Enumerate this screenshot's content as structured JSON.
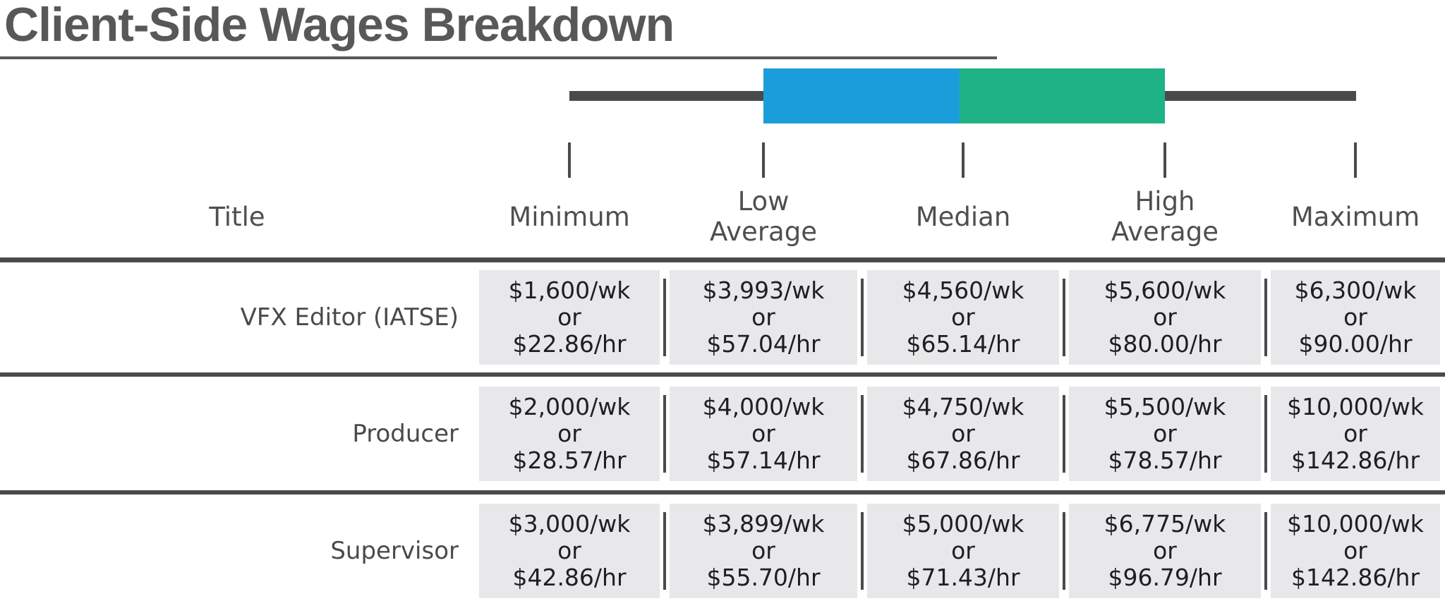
{
  "title": "Client-Side Wages Breakdown",
  "chart_data": {
    "type": "table",
    "title": "Client-Side Wages Breakdown",
    "columns": [
      "Title",
      "Minimum",
      "Low Average",
      "Median",
      "High Average",
      "Maximum"
    ],
    "column_display": [
      "Title",
      "Minimum",
      "Low\nAverage",
      "Median",
      "High\nAverage",
      "Maximum"
    ],
    "conjunction_label": "or",
    "rows": [
      {
        "label": "VFX Editor (IATSE)",
        "cells": [
          {
            "weekly": "$1,600/wk",
            "hourly": "$22.86/hr",
            "weekly_usd": 1600,
            "hourly_usd": 22.86
          },
          {
            "weekly": "$3,993/wk",
            "hourly": "$57.04/hr",
            "weekly_usd": 3993,
            "hourly_usd": 57.04
          },
          {
            "weekly": "$4,560/wk",
            "hourly": "$65.14/hr",
            "weekly_usd": 4560,
            "hourly_usd": 65.14
          },
          {
            "weekly": "$5,600/wk",
            "hourly": "$80.00/hr",
            "weekly_usd": 5600,
            "hourly_usd": 80.0
          },
          {
            "weekly": "$6,300/wk",
            "hourly": "$90.00/hr",
            "weekly_usd": 6300,
            "hourly_usd": 90.0
          }
        ]
      },
      {
        "label": "Producer",
        "cells": [
          {
            "weekly": "$2,000/wk",
            "hourly": "$28.57/hr",
            "weekly_usd": 2000,
            "hourly_usd": 28.57
          },
          {
            "weekly": "$4,000/wk",
            "hourly": "$57.14/hr",
            "weekly_usd": 4000,
            "hourly_usd": 57.14
          },
          {
            "weekly": "$4,750/wk",
            "hourly": "$67.86/hr",
            "weekly_usd": 4750,
            "hourly_usd": 67.86
          },
          {
            "weekly": "$5,500/wk",
            "hourly": "$78.57/hr",
            "weekly_usd": 5500,
            "hourly_usd": 78.57
          },
          {
            "weekly": "$10,000/wk",
            "hourly": "$142.86/hr",
            "weekly_usd": 10000,
            "hourly_usd": 142.86
          }
        ]
      },
      {
        "label": "Supervisor",
        "cells": [
          {
            "weekly": "$3,000/wk",
            "hourly": "$42.86/hr",
            "weekly_usd": 3000,
            "hourly_usd": 42.86
          },
          {
            "weekly": "$3,899/wk",
            "hourly": "$55.70/hr",
            "weekly_usd": 3899,
            "hourly_usd": 55.7
          },
          {
            "weekly": "$5,000/wk",
            "hourly": "$71.43/hr",
            "weekly_usd": 5000,
            "hourly_usd": 71.43
          },
          {
            "weekly": "$6,775/wk",
            "hourly": "$96.79/hr",
            "weekly_usd": 6775,
            "hourly_usd": 96.79
          },
          {
            "weekly": "$10,000/wk",
            "hourly": "$142.86/hr",
            "weekly_usd": 10000,
            "hourly_usd": 142.86
          }
        ]
      }
    ],
    "boxplot": {
      "whisker_from": "Minimum",
      "whisker_to": "Maximum",
      "segments": [
        {
          "from": "Low Average",
          "to": "Median",
          "color": "#1A9EDB"
        },
        {
          "from": "Median",
          "to": "High Average",
          "color": "#20B287"
        }
      ],
      "line_color": "#4A4A4C"
    },
    "colors": {
      "blue_segment": "#1A9EDB",
      "green_segment": "#20B287",
      "rule_dark": "#4A4A4C",
      "cell_background": "#E8E8EA",
      "title_text": "#58585A"
    },
    "legend_position": "top",
    "grid": "off"
  }
}
